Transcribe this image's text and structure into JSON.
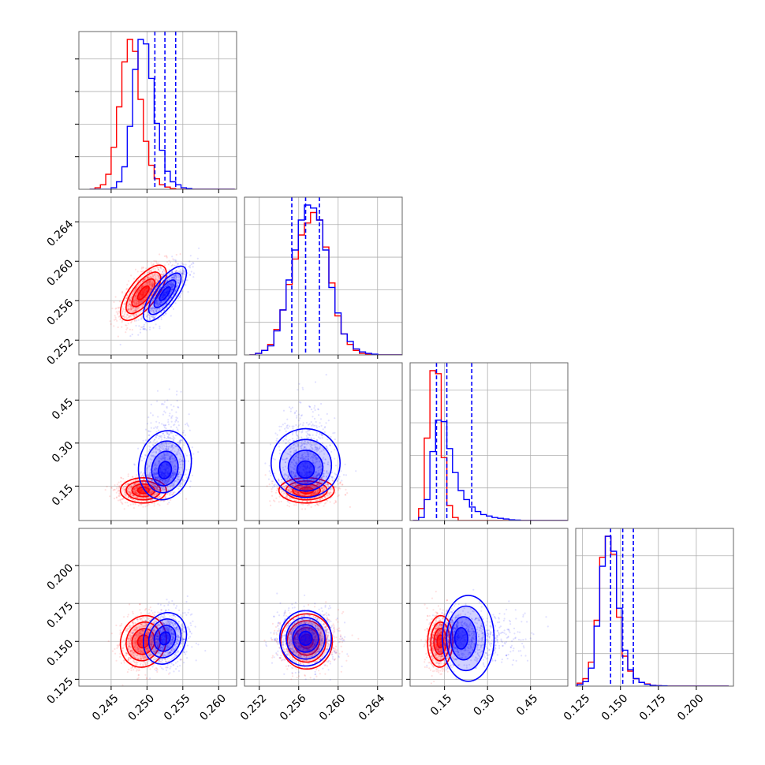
{
  "figure": {
    "colors": {
      "series_a": "#ff0000",
      "series_b": "#0000ff",
      "grid": "#b0b0b0",
      "frame": "#666666"
    }
  },
  "chart_data": {
    "type": "corner",
    "grid": true,
    "n_params": 4,
    "params": [
      {
        "range": [
          0.2405,
          0.2625
        ],
        "ticks": [
          0.245,
          0.25,
          0.255,
          0.26
        ],
        "tick_labels": [
          "0.245",
          "0.250",
          "0.255",
          "0.260"
        ]
      },
      {
        "range": [
          0.2505,
          0.2665
        ],
        "ticks": [
          0.252,
          0.256,
          0.26,
          0.264
        ],
        "tick_labels": [
          "0.252",
          "0.256",
          "0.260",
          "0.264"
        ]
      },
      {
        "range": [
          0.03,
          0.58
        ],
        "ticks": [
          0.15,
          0.3,
          0.45
        ],
        "tick_labels": [
          "0.15",
          "0.30",
          "0.45"
        ]
      },
      {
        "range": [
          0.1205,
          0.2245
        ],
        "ticks": [
          0.125,
          0.15,
          0.175,
          0.2
        ],
        "tick_labels": [
          "0.125",
          "0.150",
          "0.175",
          "0.200"
        ]
      }
    ],
    "series": [
      {
        "color": "#ff0000",
        "means": [
          0.2495,
          0.2568,
          0.135,
          0.15
        ],
        "sigmas": [
          0.0016,
          0.0014,
          0.022,
          0.0085
        ],
        "correlations": {
          "0-1": 0.7,
          "0-2": 0.0,
          "0-3": 0.1,
          "1-2": 0.0,
          "1-3": 0.0,
          "2-3": 0.05
        },
        "histograms": [
          {
            "edges_start": 0.242,
            "bin_width": 0.00075,
            "heights": [
              0,
              1,
              3,
              10,
              28,
              55,
              85,
              100,
              92,
              60,
              32,
              16,
              7,
              3,
              1.5,
              0.5,
              0,
              0,
              0,
              0,
              0,
              0,
              0,
              0,
              0,
              0,
              0
            ]
          },
          {
            "edges_start": 0.251,
            "bin_width": 0.00062,
            "heights": [
              0,
              1,
              3,
              7,
              17,
              30,
              47,
              64,
              80,
              88,
              95,
              90,
              72,
              48,
              26,
              14,
              7,
              3,
              1,
              0.5,
              0,
              0,
              0,
              0,
              0
            ]
          },
          {
            "edges_start": 0.04,
            "bin_width": 0.0197,
            "heights": [
              0,
              8,
              55,
              100,
              98,
              42,
              10,
              2,
              0,
              0,
              0,
              0,
              0,
              0,
              0,
              0,
              0,
              0,
              0,
              0,
              0,
              0,
              0,
              0,
              0,
              0,
              0,
              0
            ]
          },
          {
            "edges_start": 0.1215,
            "bin_width": 0.0037,
            "heights": [
              2,
              5,
              16,
              44,
              86,
              100,
              88,
              46,
              20,
              10,
              5,
              2.5,
              1.5,
              0.5,
              0.3,
              0,
              0,
              0,
              0,
              0,
              0,
              0,
              0,
              0,
              0,
              0,
              0
            ]
          }
        ]
      },
      {
        "color": "#0000ff",
        "means": [
          0.2525,
          0.2567,
          0.2,
          0.152
        ],
        "sigmas": [
          0.0015,
          0.0014,
          0.06,
          0.0085
        ],
        "correlations": {
          "0-1": 0.75,
          "0-2": 0.2,
          "0-3": 0.15,
          "1-2": 0.0,
          "1-3": 0.0,
          "2-3": 0.0
        },
        "histograms": [
          {
            "edges_start": 0.242,
            "bin_width": 0.00075,
            "heights": [
              0,
              0,
              0,
              0,
              1,
              5,
              15,
              42,
              80,
              100,
              97,
              74,
              44,
              26,
              12,
              5,
              3,
              1,
              0.5,
              0,
              0,
              0,
              0,
              0,
              0,
              0,
              0
            ]
          },
          {
            "edges_start": 0.251,
            "bin_width": 0.00062,
            "heights": [
              0,
              1,
              3,
              6,
              16,
              30,
              50,
              70,
              90,
              100,
              98,
              90,
              70,
              45,
              28,
              14,
              9,
              4,
              2,
              1,
              0.5,
              0,
              0,
              0,
              0
            ]
          },
          {
            "edges_start": 0.04,
            "bin_width": 0.0197,
            "heights": [
              0,
              2,
              14,
              46,
              67,
              66,
              48,
              32,
              20,
              14,
              9,
              6,
              4,
              3,
              2,
              1.5,
              1,
              0.5,
              0.3,
              0,
              0,
              0,
              0,
              0,
              0,
              0,
              0,
              0
            ]
          },
          {
            "edges_start": 0.1215,
            "bin_width": 0.0037,
            "heights": [
              1,
              3,
              12,
              40,
              80,
              100,
              90,
              52,
              24,
              11,
              5,
              2.5,
              1.2,
              0.5,
              0.3,
              0.2,
              0,
              0,
              0,
              0,
              0,
              0,
              0,
              0,
              0,
              0,
              0
            ]
          }
        ]
      }
    ],
    "quantile_lines": {
      "color": "#0000ff",
      "style": "dashed",
      "values": [
        [
          0.2511,
          0.2525,
          0.254
        ],
        [
          0.2553,
          0.2567,
          0.2581
        ],
        [
          0.122,
          0.158,
          0.245
        ],
        [
          0.1435,
          0.1515,
          0.1585
        ]
      ]
    }
  }
}
